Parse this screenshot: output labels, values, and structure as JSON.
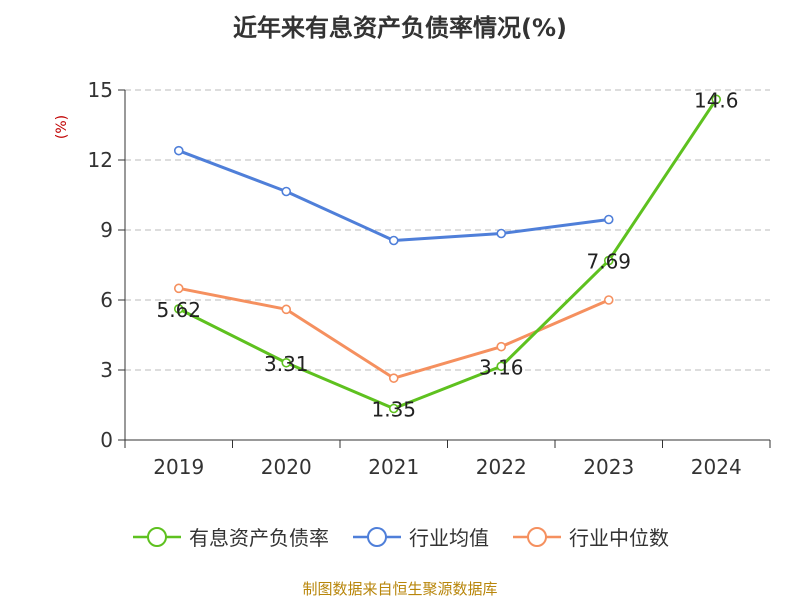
{
  "chart_data": {
    "type": "line",
    "title": "近年来有息资产负债率情况(%)",
    "ylabel": "(%)",
    "xlabel": "",
    "categories": [
      "2019",
      "2020",
      "2021",
      "2022",
      "2023",
      "2024"
    ],
    "ylim": [
      0,
      15
    ],
    "yticks": [
      "0",
      "3",
      "6",
      "9",
      "12",
      "15"
    ],
    "grid": true,
    "legend_position": "bottom",
    "series": [
      {
        "name": "有息资产负债率",
        "color": "#5ec11f",
        "values": [
          5.62,
          3.31,
          1.35,
          3.16,
          7.69,
          14.6
        ],
        "labels": [
          "5.62",
          "3.31",
          "1.35",
          "3.16",
          "7.69",
          "14.6"
        ]
      },
      {
        "name": "行业均值",
        "color": "#4f7fd9",
        "values": [
          12.4,
          10.65,
          8.55,
          8.85,
          9.45,
          null
        ]
      },
      {
        "name": "行业中位数",
        "color": "#f5905f",
        "values": [
          6.5,
          5.6,
          2.65,
          4.0,
          6.0,
          null
        ]
      }
    ]
  },
  "source": "制图数据来自恒生聚源数据库"
}
